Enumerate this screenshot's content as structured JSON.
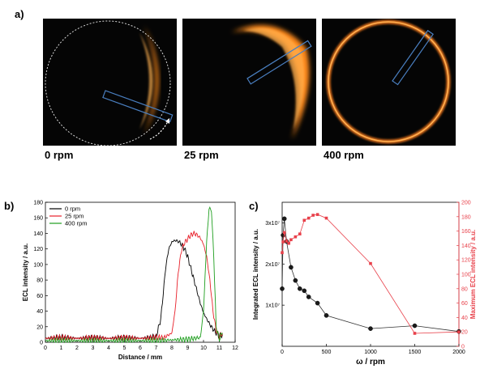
{
  "panels": {
    "a": {
      "label": "a)",
      "images": [
        {
          "rpm_label": "0 rpm"
        },
        {
          "rpm_label": "25 rpm"
        },
        {
          "rpm_label": "400 rpm"
        }
      ]
    },
    "b": {
      "label": "b)"
    },
    "c": {
      "label": "c)"
    }
  },
  "colors": {
    "series_0rpm": "#000000",
    "series_25rpm": "#e8202a",
    "series_400rpm": "#1e9e1e",
    "integrated": "#333333",
    "maximum": "#e8404a",
    "right_axis": "#e8404a",
    "glow": "#ff9a2a",
    "roi": "#4a7fc0"
  },
  "chart_data": [
    {
      "type": "line",
      "panel": "b",
      "xlabel": "Distance / mm",
      "ylabel": "ECL intensity / a.u.",
      "xlim": [
        0,
        12
      ],
      "ylim": [
        0,
        180
      ],
      "xticks": [
        0,
        1,
        2,
        3,
        4,
        5,
        6,
        7,
        8,
        9,
        10,
        11,
        12
      ],
      "yticks": [
        0,
        20,
        40,
        60,
        80,
        100,
        120,
        140,
        160,
        180
      ],
      "legend_position": "top-left",
      "series": [
        {
          "name": "0 rpm",
          "x": [
            0,
            1,
            2,
            3,
            4,
            5,
            6,
            7.0,
            7.3,
            7.6,
            7.8,
            8.0,
            8.2,
            8.4,
            8.6,
            8.8,
            9.0,
            9.2,
            9.4,
            9.6,
            9.8,
            10.0,
            10.2,
            10.4,
            10.6,
            10.8,
            11.0,
            11.2
          ],
          "values": [
            5,
            6,
            5,
            6,
            5,
            6,
            5,
            7,
            30,
            95,
            120,
            129,
            131,
            130,
            126,
            120,
            110,
            95,
            80,
            65,
            50,
            38,
            30,
            23,
            17,
            12,
            8,
            10
          ]
        },
        {
          "name": "25 rpm",
          "x": [
            0,
            1,
            2,
            3,
            4,
            5,
            6,
            7.0,
            7.5,
            8.0,
            8.2,
            8.4,
            8.6,
            8.8,
            9.0,
            9.2,
            9.4,
            9.6,
            9.8,
            10.0,
            10.2,
            10.4,
            10.6,
            10.8,
            11.0,
            11.2
          ],
          "values": [
            5,
            6,
            5,
            6,
            5,
            6,
            5,
            6,
            6,
            12,
            40,
            90,
            118,
            128,
            133,
            138,
            140,
            138,
            134,
            126,
            110,
            80,
            40,
            15,
            7,
            12
          ]
        },
        {
          "name": "400 rpm",
          "x": [
            0,
            1,
            2,
            3,
            4,
            5,
            6,
            7,
            8,
            9,
            9.8,
            10.0,
            10.2,
            10.35,
            10.5,
            10.65,
            10.8,
            11.0,
            11.2
          ],
          "values": [
            2,
            2,
            2,
            2,
            2,
            2,
            2,
            2,
            3,
            4,
            6,
            40,
            130,
            172,
            170,
            110,
            20,
            4,
            12
          ]
        }
      ]
    },
    {
      "type": "scatter",
      "panel": "c",
      "xlabel": "ω / rpm",
      "ylabel": "Integrated ECL intensity / a.u.",
      "y2label": "Maximum ECL intensity / a.u.",
      "xlim": [
        0,
        2000
      ],
      "ylim": [
        0,
        35000000.0
      ],
      "y2lim": [
        0,
        200
      ],
      "xticks": [
        0,
        500,
        1000,
        1500,
        2000
      ],
      "ytick_labels": [
        "1x10⁷",
        "2x10⁷",
        "3x10⁷"
      ],
      "ytick_values": [
        10000000.0,
        20000000.0,
        30000000.0
      ],
      "y2ticks": [
        0,
        20,
        40,
        60,
        80,
        100,
        120,
        140,
        160,
        180,
        200
      ],
      "series": [
        {
          "axis": "left",
          "x": [
            0,
            10,
            25,
            50,
            100,
            150,
            200,
            250,
            300,
            400,
            500,
            1000,
            1500,
            2000
          ],
          "values": [
            14000000.0,
            27000000.0,
            31000000.0,
            25500000.0,
            19200000.0,
            16000000.0,
            14000000.0,
            13500000.0,
            12000000.0,
            10500000.0,
            7500000.0,
            4300000.0,
            5000000.0,
            3600000.0
          ]
        },
        {
          "axis": "right",
          "x": [
            0,
            10,
            25,
            50,
            75,
            100,
            150,
            200,
            250,
            300,
            350,
            400,
            500,
            1000,
            1500,
            2000
          ],
          "values": [
            130,
            145,
            158,
            146,
            143,
            148,
            152,
            156,
            175,
            178,
            182,
            183,
            178,
            115,
            18,
            20
          ]
        }
      ]
    }
  ]
}
